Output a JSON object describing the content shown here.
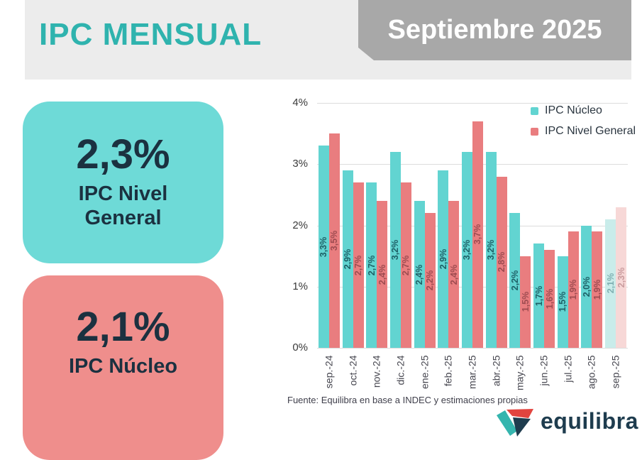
{
  "header": {
    "title": "IPC MENSUAL",
    "badge": "Septiembre 2025"
  },
  "summary_cards": [
    {
      "value": "2,3%",
      "label": "IPC Nivel General"
    },
    {
      "value": "2,1%",
      "label": "IPC Núcleo"
    }
  ],
  "chart_data": {
    "type": "bar",
    "title": "",
    "xlabel": "",
    "ylabel": "",
    "categories": [
      "sep.-24",
      "oct.-24",
      "nov.-24",
      "dic.-24",
      "ene.-25",
      "feb.-25",
      "mar.-25",
      "abr.-25",
      "may.-25",
      "jun.-25",
      "jul.-25",
      "ago.-25",
      "sep.-25"
    ],
    "series": [
      {
        "name": "IPC Núcleo",
        "values": [
          3.3,
          2.9,
          2.7,
          3.2,
          2.4,
          2.9,
          3.2,
          3.2,
          2.2,
          1.7,
          1.5,
          2.0,
          2.1
        ],
        "labels": [
          "3,3%",
          "2,9%",
          "2,7%",
          "3,2%",
          "2,4%",
          "2,9%",
          "3,2%",
          "3,2%",
          "2,2%",
          "1,7%",
          "1,5%",
          "2,0%",
          "2,1%"
        ]
      },
      {
        "name": "IPC Nivel General",
        "values": [
          3.5,
          2.7,
          2.4,
          2.7,
          2.2,
          2.4,
          3.7,
          2.8,
          1.5,
          1.6,
          1.9,
          1.9,
          2.3
        ],
        "labels": [
          "3,5%",
          "2,7%",
          "2,4%",
          "2,7%",
          "2,2%",
          "2,4%",
          "3,7%",
          "2,8%",
          "1,5%",
          "1,6%",
          "1,9%",
          "1,9%",
          "2,3%"
        ]
      }
    ],
    "faded_last_group": true,
    "ylim": [
      0,
      4
    ],
    "yticks": [
      "0%",
      "1%",
      "2%",
      "3%",
      "4%"
    ],
    "grid": true,
    "legend_position": "top-right"
  },
  "footer": {
    "source": "Fuente: Equilibra en base a INDEC y estimaciones propias",
    "brand": "equilibra"
  },
  "colors": {
    "accent_teal": "#2fb3ae",
    "band_gray": "#ececec",
    "badge_gray": "#a8a8a8",
    "card_teal": "#6edad7",
    "card_red": "#ef8e8c",
    "navy_text": "#1b3140",
    "bar_nucleo": "#62d4d1",
    "bar_general": "#e97d7f",
    "bar_nucleo_faded": "#c9ecea",
    "bar_general_faded": "#f7d8d7",
    "label_nucleo": "#1d6066",
    "label_general": "#9d4b50",
    "label_nucleo_faded": "#7fb0b2",
    "label_general_faded": "#c99b9d",
    "gridline": "#dcdcdc"
  }
}
